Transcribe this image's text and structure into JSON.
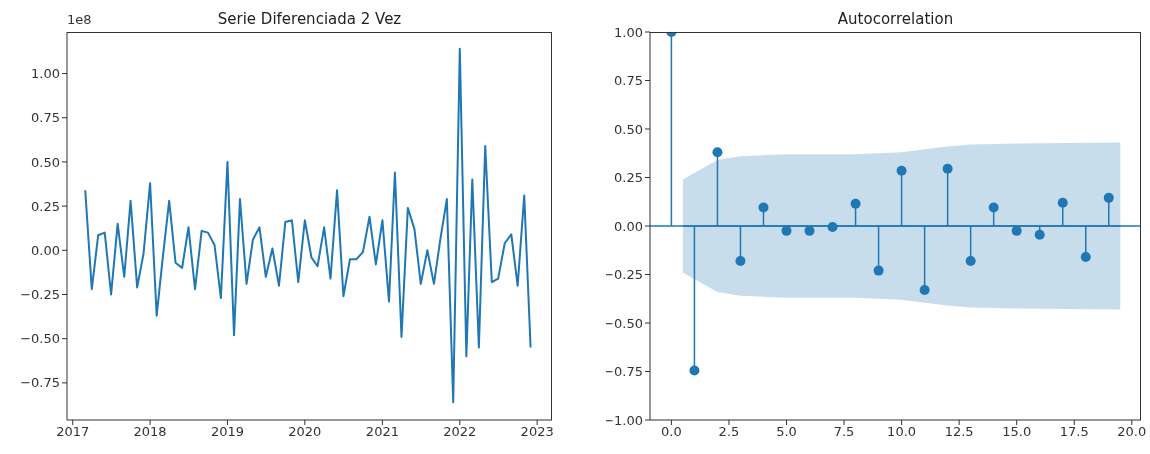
{
  "chart_data": [
    {
      "type": "line",
      "title": "Serie Diferenciada 2 Vez",
      "annotations": [
        "1e8"
      ],
      "color": "#1f77b4",
      "x": [
        "2017-03",
        "2017-04",
        "2017-05",
        "2017-06",
        "2017-07",
        "2017-08",
        "2017-09",
        "2017-10",
        "2017-11",
        "2017-12",
        "2018-01",
        "2018-02",
        "2018-03",
        "2018-04",
        "2018-05",
        "2018-06",
        "2018-07",
        "2018-08",
        "2018-09",
        "2018-10",
        "2018-11",
        "2018-12",
        "2019-01",
        "2019-02",
        "2019-03",
        "2019-04",
        "2019-05",
        "2019-06",
        "2019-07",
        "2019-08",
        "2019-09",
        "2019-10",
        "2019-11",
        "2019-12",
        "2020-01",
        "2020-02",
        "2020-03",
        "2020-04",
        "2020-05",
        "2020-06",
        "2020-07",
        "2020-08",
        "2020-09",
        "2020-10",
        "2020-11",
        "2020-12",
        "2021-01",
        "2021-02",
        "2021-03",
        "2021-04",
        "2021-05",
        "2021-06",
        "2021-07",
        "2021-08",
        "2021-09",
        "2021-10",
        "2021-11",
        "2021-12",
        "2022-01",
        "2022-02",
        "2022-03",
        "2022-04",
        "2022-05",
        "2022-06",
        "2022-07",
        "2022-08",
        "2022-09",
        "2022-10",
        "2022-11",
        "2022-12"
      ],
      "values": [
        0.34,
        -0.22,
        0.085,
        0.1,
        -0.25,
        0.15,
        -0.15,
        0.28,
        -0.21,
        -0.02,
        0.38,
        -0.37,
        -0.05,
        0.28,
        -0.07,
        -0.1,
        0.13,
        -0.22,
        0.11,
        0.1,
        0.03,
        -0.27,
        0.5,
        -0.48,
        0.29,
        -0.19,
        0.06,
        0.13,
        -0.15,
        0.01,
        -0.2,
        0.16,
        0.17,
        -0.18,
        0.17,
        -0.04,
        -0.09,
        0.13,
        -0.16,
        0.34,
        -0.26,
        -0.05,
        -0.05,
        -0.01,
        0.19,
        -0.08,
        0.17,
        -0.29,
        0.44,
        -0.49,
        0.24,
        0.12,
        -0.19,
        0,
        -0.19,
        0.06,
        0.29,
        -0.86,
        1.14,
        -0.6,
        0.4,
        -0.55,
        0.59,
        -0.18,
        -0.16,
        0.04,
        0.09,
        -0.2,
        0.31,
        -0.55
      ],
      "xlim": [
        "2016-12-05",
        "2023-03-12"
      ],
      "xticks": [
        {
          "value": "2017",
          "label": "2017"
        },
        {
          "value": "2018",
          "label": "2018"
        },
        {
          "value": "2019",
          "label": "2019"
        },
        {
          "value": "2020",
          "label": "2020"
        },
        {
          "value": "2021",
          "label": "2021"
        },
        {
          "value": "2022",
          "label": "2022"
        },
        {
          "value": "2023",
          "label": "2023"
        }
      ],
      "ylim": [
        -0.96,
        1.235
      ],
      "yticks": [
        {
          "value": -0.75,
          "label": "−0.75"
        },
        {
          "value": -0.5,
          "label": "−0.50"
        },
        {
          "value": -0.25,
          "label": "−0.25"
        },
        {
          "value": 0,
          "label": "0.00"
        },
        {
          "value": 0.25,
          "label": "0.25"
        },
        {
          "value": 0.5,
          "label": "0.50"
        },
        {
          "value": 0.75,
          "label": "0.75"
        },
        {
          "value": 1,
          "label": "1.00"
        }
      ],
      "grid": false,
      "legend": false
    },
    {
      "type": "lollipop",
      "title": "Autocorrelation",
      "series": [
        {
          "type": "lollipop",
          "marker": "circle",
          "color": "#1f77b4",
          "x": [
            0,
            1,
            2,
            3,
            4,
            5,
            6,
            7,
            8,
            9,
            10,
            11,
            12,
            13,
            14,
            15,
            16,
            17,
            18,
            19
          ],
          "values": [
            1,
            -0.745,
            0.38,
            -0.18,
            0.095,
            -0.025,
            -0.025,
            -0.005,
            0.115,
            -0.23,
            0.285,
            -0.33,
            0.295,
            -0.18,
            0.095,
            -0.025,
            -0.045,
            0.12,
            -0.16,
            0.145
          ]
        },
        {
          "type": "line",
          "color": "#1f77b4",
          "x": [
            0.5,
            2,
            3,
            5,
            8,
            10,
            12,
            13,
            15,
            19.5
          ],
          "values": [
            0,
            0,
            0,
            0,
            0,
            0,
            0,
            0,
            0,
            0
          ],
          "lower": [
            -0.24,
            -0.34,
            -0.36,
            -0.37,
            -0.37,
            -0.38,
            -0.41,
            -0.42,
            -0.425,
            -0.43
          ],
          "upper": [
            0.24,
            0.34,
            0.36,
            0.37,
            0.37,
            0.38,
            0.41,
            0.42,
            0.425,
            0.43
          ]
        }
      ],
      "ref_lines": [
        {
          "axis": "y",
          "value": 0,
          "color": "#1f77b4"
        }
      ],
      "xlim": [
        -0.93,
        20.4
      ],
      "xticks": [
        {
          "value": 0,
          "label": "0.0"
        },
        {
          "value": 2.5,
          "label": "2.5"
        },
        {
          "value": 5,
          "label": "5.0"
        },
        {
          "value": 7.5,
          "label": "7.5"
        },
        {
          "value": 10,
          "label": "10.0"
        },
        {
          "value": 12.5,
          "label": "12.5"
        },
        {
          "value": 15,
          "label": "15.0"
        },
        {
          "value": 17.5,
          "label": "17.5"
        },
        {
          "value": 20,
          "label": "20.0"
        }
      ],
      "ylim": [
        -1,
        1
      ],
      "yticks": [
        {
          "value": -1,
          "label": "−1.00"
        },
        {
          "value": -0.75,
          "label": "−0.75"
        },
        {
          "value": -0.5,
          "label": "−0.50"
        },
        {
          "value": -0.25,
          "label": "−0.25"
        },
        {
          "value": 0,
          "label": "0.00"
        },
        {
          "value": 0.25,
          "label": "0.25"
        },
        {
          "value": 0.5,
          "label": "0.50"
        },
        {
          "value": 0.75,
          "label": "0.75"
        },
        {
          "value": 1,
          "label": "1.00"
        }
      ],
      "grid": false,
      "legend": false
    }
  ]
}
